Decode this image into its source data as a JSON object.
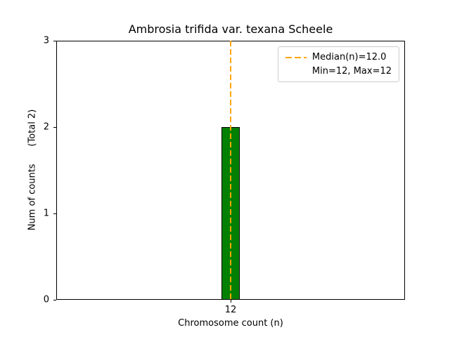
{
  "figure": {
    "title": "Ambrosia trifida var. texana Scheele",
    "xlabel": "Chromosome count (n)",
    "ylabel": "Num of counts      (Total 2)"
  },
  "legend": {
    "median": "Median(n)=12.0",
    "minmax": "Min=12, Max=12"
  },
  "colors": {
    "bar_fill": "#008000",
    "bar_edge": "#000000",
    "median_line": "#ffa500",
    "legend_border": "#cccccc"
  },
  "chart_data": {
    "type": "bar",
    "title": "Ambrosia trifida var. texana Scheele",
    "xlabel": "Chromosome count (n)",
    "ylabel": "Num of counts (Total 2)",
    "categories": [
      "12"
    ],
    "values": [
      2
    ],
    "total_counts": 2,
    "ylim": [
      0,
      3
    ],
    "yticks": [
      0,
      1,
      2,
      3
    ],
    "median_n": 12.0,
    "min_n": 12,
    "max_n": 12,
    "legend_position": "upper right",
    "grid": false,
    "bar_color": "#008000",
    "median_line_color": "#ffa500"
  }
}
